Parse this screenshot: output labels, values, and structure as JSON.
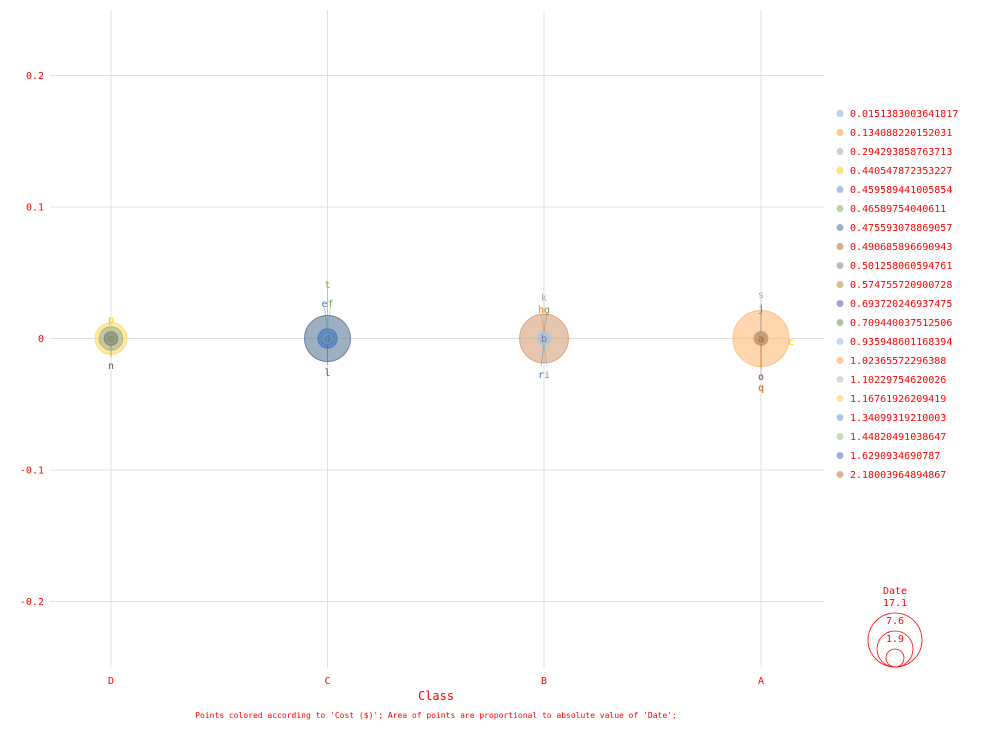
{
  "chart_data": {
    "type": "scatter",
    "xlabel": "Class",
    "ylabel": "",
    "categories": [
      "D",
      "C",
      "B",
      "A"
    ],
    "ylim": [
      -0.25,
      0.25
    ],
    "yticks": [
      0.2,
      0.1,
      0,
      -0.1,
      -0.2
    ],
    "ytick_labels": [
      "0.2",
      "0.1",
      "0",
      "-0.1",
      "-0.2"
    ],
    "grid": true,
    "caption": "Points colored according to 'Cost ($)'; Area of points are proportional to absolute value of 'Date';",
    "color_legend": {
      "placement": "right",
      "entries": [
        {
          "label": "0.0151383003641817",
          "color": "#aec7e8"
        },
        {
          "label": "0.134088220152031",
          "color": "#ffbb78"
        },
        {
          "label": "0.294293858763713",
          "color": "#c7c7c7"
        },
        {
          "label": "0.440547872353227",
          "color": "#ffd966"
        },
        {
          "label": "0.459589441005854",
          "color": "#9fb4de"
        },
        {
          "label": "0.46589754040611",
          "color": "#a8d08d"
        },
        {
          "label": "0.475593078869057",
          "color": "#8da0c8"
        },
        {
          "label": "0.490685896690943",
          "color": "#d6a07a"
        },
        {
          "label": "0.501258060594761",
          "color": "#b0b0b0"
        },
        {
          "label": "0.574755720900728",
          "color": "#cdb27a"
        },
        {
          "label": "0.693720246937475",
          "color": "#8a9cc8"
        },
        {
          "label": "0.709440037512506",
          "color": "#9fb593"
        },
        {
          "label": "0.935948601168394",
          "color": "#b6d4ec"
        },
        {
          "label": "1.02365572296388",
          "color": "#ffc08a"
        },
        {
          "label": "1.10229754620026",
          "color": "#d3d3d3"
        },
        {
          "label": "1.16761926209419",
          "color": "#ffe08a"
        },
        {
          "label": "1.34099319210003",
          "color": "#a4b8e4"
        },
        {
          "label": "1.44820491038647",
          "color": "#bcd6a4"
        },
        {
          "label": "1.6290934690787",
          "color": "#8da5d0"
        },
        {
          "label": "2.18003964894867",
          "color": "#d9a380"
        }
      ]
    },
    "size_legend": {
      "title": "Date",
      "values": [
        17.1,
        7.6,
        1.9
      ],
      "labels": [
        "17.1",
        "7.6",
        "1.9"
      ]
    },
    "points": [
      {
        "label": "p",
        "category": "D",
        "y": 0,
        "size": 5.5,
        "color": "#ffd966",
        "label_color": "#ffc000"
      },
      {
        "label": "m",
        "category": "D",
        "y": 0,
        "size": 3.0,
        "color": "#9fb593",
        "label_color": "#6f8f5f"
      },
      {
        "label": "n",
        "category": "D",
        "y": 0,
        "size": 1.0,
        "color": "#7f7f7f",
        "label_color": "#595959"
      },
      {
        "label": "t",
        "category": "C",
        "y": 0,
        "size": 1.0,
        "color": "#a8d08d",
        "label_color": "#70ad47"
      },
      {
        "label": "e",
        "category": "C",
        "y": 0,
        "size": 2.0,
        "color": "#4472c4",
        "label_color": "#4472c4"
      },
      {
        "label": "f",
        "category": "C",
        "y": 0,
        "size": 1.0,
        "color": "#a8d08d",
        "label_color": "#70ad47"
      },
      {
        "label": "d",
        "category": "C",
        "y": 0,
        "size": 11.5,
        "color": "#5b7b9a",
        "label_color": "#4472c4"
      },
      {
        "label": "l",
        "category": "C",
        "y": 0,
        "size": 1.0,
        "color": "#4472c4",
        "label_color": "#2f5597"
      },
      {
        "label": "k",
        "category": "B",
        "y": 0,
        "size": 1.0,
        "color": "#c7c7c7",
        "label_color": "#a6a6a6"
      },
      {
        "label": "h",
        "category": "B",
        "y": 0,
        "size": 1.0,
        "color": "#ffbb78",
        "label_color": "#ed7d31"
      },
      {
        "label": "g",
        "category": "B",
        "y": 0,
        "size": 1.0,
        "color": "#cdb27a",
        "label_color": "#a08040"
      },
      {
        "label": "b",
        "category": "B",
        "y": 0,
        "size": 13.0,
        "color": "#d6a07a",
        "label_color": "#7f6fa0"
      },
      {
        "label": "r",
        "category": "B",
        "y": 0,
        "size": 1.0,
        "color": "#8da0c8",
        "label_color": "#4472c4"
      },
      {
        "label": "i",
        "category": "B",
        "y": 0,
        "size": 1.0,
        "color": "#b6d4ec",
        "label_color": "#5b9bd5"
      },
      {
        "label": "s",
        "category": "A",
        "y": 0,
        "size": 1.0,
        "color": "#c7c7c7",
        "label_color": "#a6a6a6"
      },
      {
        "label": "j",
        "category": "A",
        "y": 0,
        "size": 1.0,
        "color": "#9fb4de",
        "label_color": "#4472c4"
      },
      {
        "label": "a",
        "category": "A",
        "y": 0,
        "size": 17.1,
        "color": "#ffbb78",
        "label_color": "#c55a11"
      },
      {
        "label": "c",
        "category": "A",
        "y": 0,
        "size": 1.0,
        "color": "#ffd966",
        "label_color": "#ffc000"
      },
      {
        "label": "o",
        "category": "A",
        "y": 0,
        "size": 1.0,
        "color": "#7f7f7f",
        "label_color": "#595959"
      },
      {
        "label": "q",
        "category": "A",
        "y": 0,
        "size": 1.0,
        "color": "#d6a07a",
        "label_color": "#c55a11"
      }
    ]
  }
}
